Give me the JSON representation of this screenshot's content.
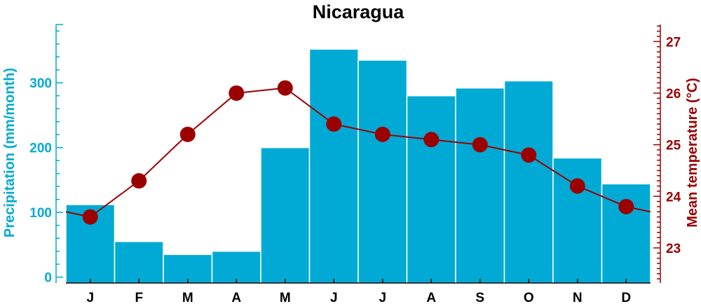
{
  "chart_data": {
    "type": "bar",
    "title": "Nicaragua",
    "categories": [
      "J",
      "F",
      "M",
      "A",
      "M",
      "J",
      "J",
      "A",
      "S",
      "O",
      "N",
      "D"
    ],
    "ylabel": "Precipitation (mm/month)",
    "y2label": "Mean temperature (°C)",
    "ylim": [
      -9,
      390
    ],
    "y2lim": [
      22.32,
      27.33
    ],
    "yticks": [
      0,
      100,
      200,
      300
    ],
    "y2ticks": [
      23,
      24,
      25,
      26,
      27
    ],
    "grid": false,
    "series": [
      {
        "name": "Precipitation (mm/month)",
        "type": "bar",
        "axis": "left",
        "color": "#00aad4",
        "values": [
          112,
          55,
          35,
          40,
          200,
          352,
          335,
          280,
          292,
          303,
          184,
          144
        ]
      },
      {
        "name": "Mean temperature (°C)",
        "type": "line",
        "axis": "right",
        "color": "#9b0000",
        "values": [
          23.6,
          24.3,
          25.2,
          26.0,
          26.1,
          25.4,
          25.2,
          25.1,
          25.0,
          24.8,
          24.2,
          23.8
        ]
      }
    ]
  }
}
